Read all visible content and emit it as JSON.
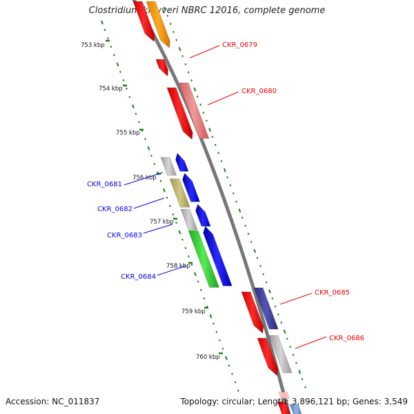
{
  "title": "Clostridium kluyveri NBRC 12016, complete genome",
  "footer": {
    "accession": "Accession: NC_011837",
    "summary": "Topology: circular; Length: 3,896,121 bp; Genes: 3,549"
  },
  "ruler": {
    "ticks": [
      "753 kbp",
      "754 kbp",
      "755 kbp",
      "756 kbp",
      "757 kbp",
      "758 kbp",
      "759 kbp",
      "760 kbp"
    ]
  },
  "genes": [
    {
      "id": "CKR_0679",
      "strand": "forward",
      "color": "#ee0000"
    },
    {
      "id": "CKR_0680",
      "strand": "forward",
      "color": "#ee0000"
    },
    {
      "id": "CKR_0681",
      "strand": "reverse",
      "color": "#0000ee"
    },
    {
      "id": "CKR_0682",
      "strand": "reverse",
      "color": "#0000ee"
    },
    {
      "id": "CKR_0683",
      "strand": "reverse",
      "color": "#0000ee"
    },
    {
      "id": "CKR_0684",
      "strand": "reverse",
      "color": "#0000ee"
    },
    {
      "id": "CKR_0685",
      "strand": "forward",
      "color": "#ee0000"
    },
    {
      "id": "CKR_0686",
      "strand": "forward",
      "color": "#ee0000"
    }
  ],
  "colors": {
    "backbone": "#777777",
    "tick": "#1a7a1a",
    "red": "#ee0000",
    "blue": "#0000ee",
    "orange": "#ff9900",
    "pink": "#e87878",
    "grey": "#b0b0b0",
    "olive": "#b5b060",
    "green": "#33cc33",
    "navy": "#3d3d9a",
    "lightblue": "#6699cc"
  }
}
